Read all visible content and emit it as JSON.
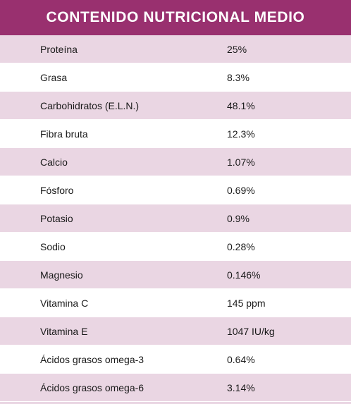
{
  "title": "CONTENIDO NUTRICIONAL MEDIO",
  "rows": [
    {
      "name": "Proteína",
      "value": "25%"
    },
    {
      "name": "Grasa",
      "value": "8.3%"
    },
    {
      "name": "Carbohidratos (E.L.N.)",
      "value": "48.1%"
    },
    {
      "name": "Fibra bruta",
      "value": "12.3%"
    },
    {
      "name": "Calcio",
      "value": "1.07%"
    },
    {
      "name": "Fósforo",
      "value": "0.69%"
    },
    {
      "name": "Potasio",
      "value": "0.9%"
    },
    {
      "name": "Sodio",
      "value": "0.28%"
    },
    {
      "name": "Magnesio",
      "value": "0.146%"
    },
    {
      "name": "Vitamina C",
      "value": "145 ppm"
    },
    {
      "name": "Vitamina E",
      "value": "1047 IU/kg"
    },
    {
      "name": "Ácidos grasos omega-3",
      "value": "0.64%"
    },
    {
      "name": "Ácidos grasos omega-6",
      "value": "3.14%"
    }
  ],
  "colors": {
    "header_bg": "#99306f",
    "row_shaded": "#ead6e3",
    "row_plain": "#ffffff"
  }
}
